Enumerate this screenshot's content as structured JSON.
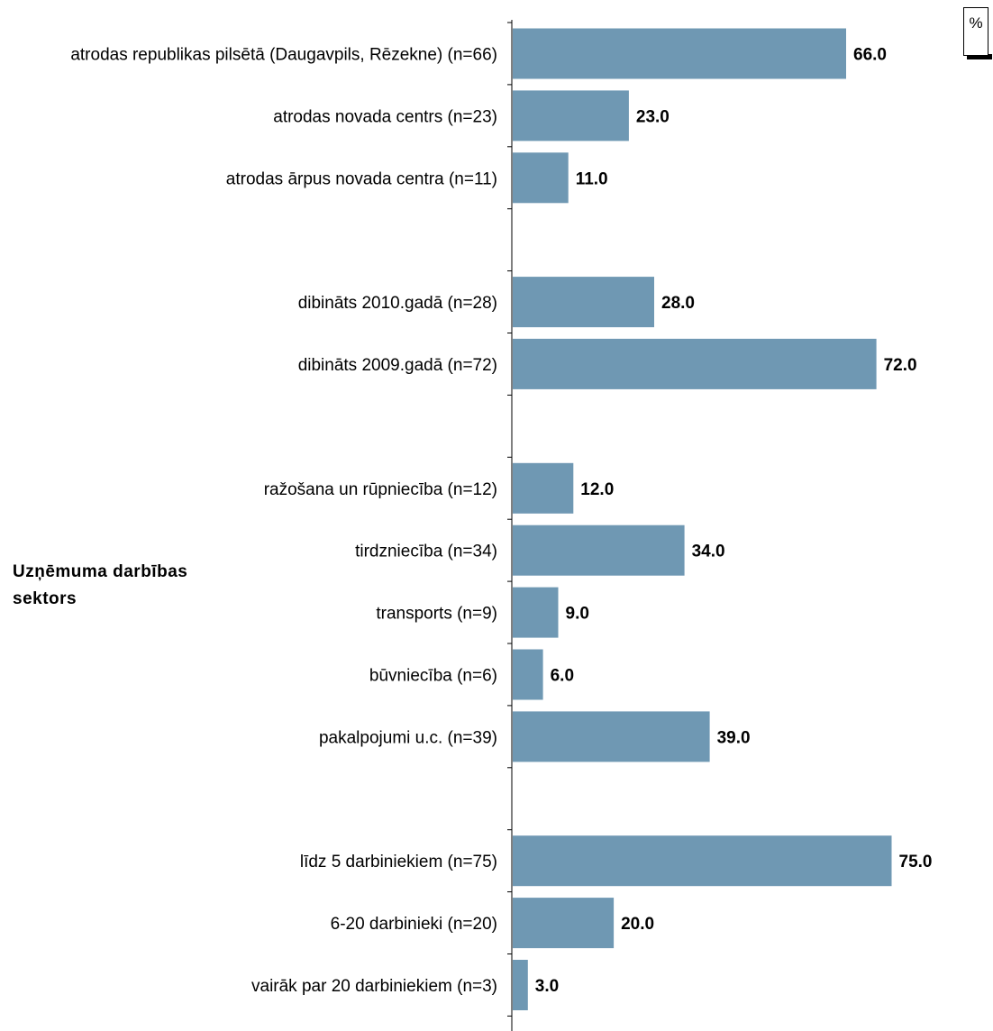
{
  "unit_label": "%",
  "group_label": "Uzņēmuma darbības sektors",
  "chart_data": {
    "type": "bar",
    "orientation": "horizontal",
    "bar_color": "#6f98b3",
    "xlim": [
      0,
      100
    ],
    "groups": [
      {
        "categories": [
          "atrodas republikas pilsētā (Daugavpils, Rēzekne) (n=66)",
          "atrodas novada centrs (n=23)",
          "atrodas ārpus novada centra (n=11)"
        ],
        "values": [
          66.0,
          23.0,
          11.0
        ]
      },
      {
        "categories": [
          "dibināts 2010.gadā (n=28)",
          "dibināts 2009.gadā (n=72)"
        ],
        "values": [
          28.0,
          72.0
        ]
      },
      {
        "name": "Uzņēmuma darbības sektors",
        "categories": [
          "ražošana un rūpniecība (n=12)",
          "tirdzniecība (n=34)",
          "transports (n=9)",
          "būvniecība (n=6)",
          "pakalpojumi u.c. (n=39)"
        ],
        "values": [
          12.0,
          34.0,
          9.0,
          6.0,
          39.0
        ]
      },
      {
        "categories": [
          "līdz 5 darbiniekiem (n=75)",
          "6-20 darbinieki (n=20)",
          "vairāk par 20 darbiniekiem (n=3)"
        ],
        "values": [
          75.0,
          20.0,
          3.0
        ]
      }
    ]
  }
}
